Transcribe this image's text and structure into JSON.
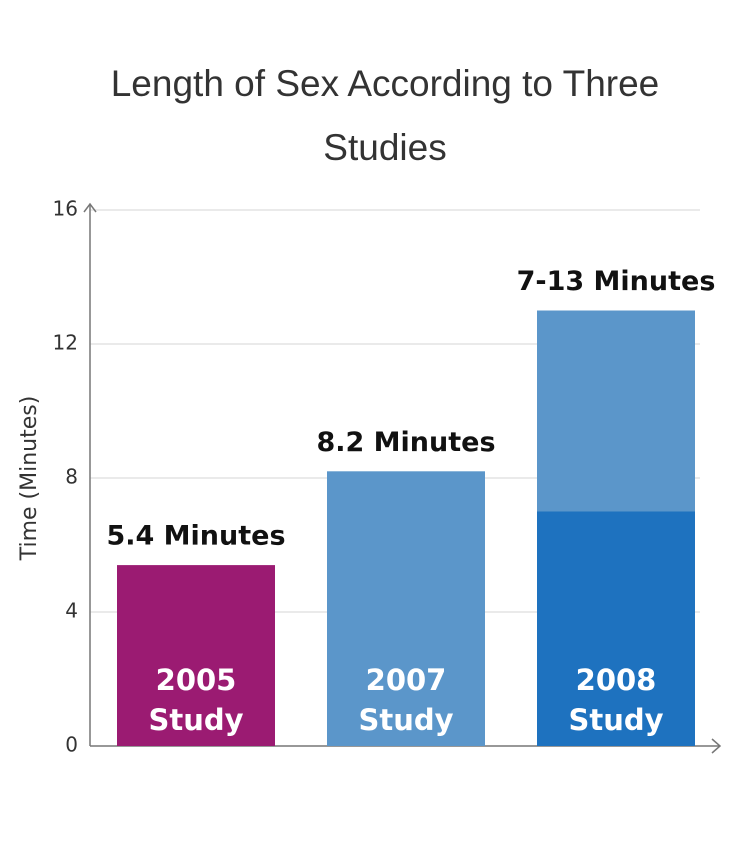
{
  "chart_data": {
    "type": "bar",
    "title": "Length of Sex According to Three Studies",
    "ylabel": "Time (Minutes)",
    "categories": [
      "2005 Study",
      "2007 Study",
      "2008 Study"
    ],
    "series": [
      {
        "colors": [
          "#9b1b72",
          "#5b96ca",
          "#1e72bf"
        ],
        "values": [
          5.4,
          8.2,
          7
        ],
        "value_labels": [
          "5.4 Minutes",
          "8.2 Minutes",
          "7-13 Minutes"
        ]
      },
      {
        "color": "#5b96ca",
        "values": [
          null,
          null,
          6
        ]
      }
    ],
    "ylim": [
      0,
      16
    ],
    "yticks": [
      0,
      4,
      8,
      12,
      16
    ],
    "grid": true
  }
}
